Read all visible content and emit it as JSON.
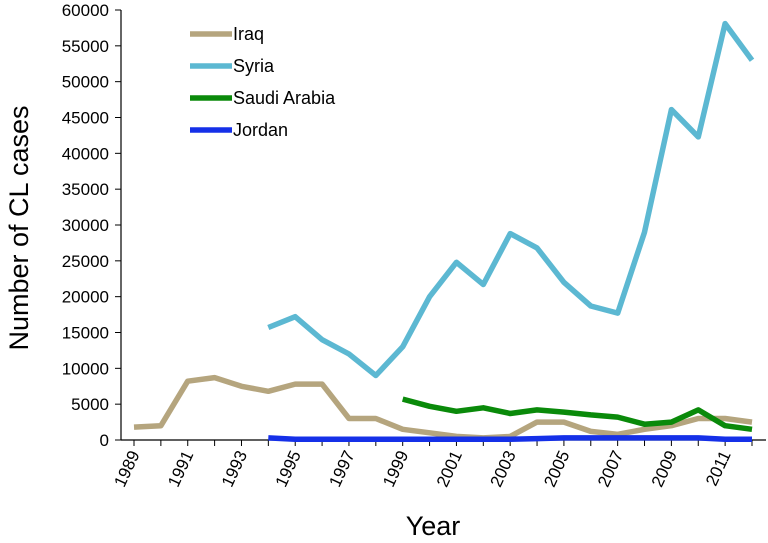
{
  "chart_data": {
    "type": "line",
    "xlabel": "Year",
    "ylabel": "Number of CL cases",
    "xlim": [
      1989,
      2012
    ],
    "ylim": [
      0,
      60000
    ],
    "grid": false,
    "legend_position": "top-left",
    "x_tick_labels": [
      "1989",
      "1991",
      "1993",
      "1995",
      "1997",
      "1999",
      "2001",
      "2003",
      "2005",
      "2007",
      "2009",
      "2011"
    ],
    "y_tick_labels": [
      "0",
      "5000",
      "10000",
      "15000",
      "20000",
      "25000",
      "30000",
      "35000",
      "40000",
      "45000",
      "50000",
      "55000",
      "60000"
    ],
    "series": [
      {
        "name": "Iraq",
        "color": "#b5a57e",
        "points": [
          [
            1989,
            1800
          ],
          [
            1990,
            2000
          ],
          [
            1991,
            8200
          ],
          [
            1992,
            8700
          ],
          [
            1993,
            7500
          ],
          [
            1994,
            6800
          ],
          [
            1995,
            7800
          ],
          [
            1996,
            7800
          ],
          [
            1997,
            3000
          ],
          [
            1998,
            3000
          ],
          [
            1999,
            1500
          ],
          [
            2000,
            1000
          ],
          [
            2001,
            500
          ],
          [
            2002,
            300
          ],
          [
            2003,
            500
          ],
          [
            2004,
            2500
          ],
          [
            2005,
            2500
          ],
          [
            2006,
            1200
          ],
          [
            2007,
            800
          ],
          [
            2008,
            1500
          ],
          [
            2009,
            2000
          ],
          [
            2010,
            3000
          ],
          [
            2011,
            3000
          ],
          [
            2012,
            2500
          ]
        ]
      },
      {
        "name": "Syria",
        "color": "#5cb8d2",
        "points": [
          [
            1994,
            15700
          ],
          [
            1995,
            17200
          ],
          [
            1996,
            14000
          ],
          [
            1997,
            12000
          ],
          [
            1998,
            9000
          ],
          [
            1999,
            13000
          ],
          [
            2000,
            20000
          ],
          [
            2001,
            24800
          ],
          [
            2002,
            21700
          ],
          [
            2003,
            28800
          ],
          [
            2004,
            26800
          ],
          [
            2005,
            22000
          ],
          [
            2006,
            18700
          ],
          [
            2007,
            17700
          ],
          [
            2008,
            29000
          ],
          [
            2009,
            46100
          ],
          [
            2010,
            42300
          ],
          [
            2011,
            58100
          ],
          [
            2012,
            53000
          ]
        ]
      },
      {
        "name": "Saudi Arabia",
        "color": "#0a8a0a",
        "points": [
          [
            1999,
            5700
          ],
          [
            2000,
            4700
          ],
          [
            2001,
            4000
          ],
          [
            2002,
            4500
          ],
          [
            2003,
            3700
          ],
          [
            2004,
            4200
          ],
          [
            2005,
            3900
          ],
          [
            2006,
            3500
          ],
          [
            2007,
            3200
          ],
          [
            2008,
            2200
          ],
          [
            2009,
            2500
          ],
          [
            2010,
            4200
          ],
          [
            2011,
            2000
          ],
          [
            2012,
            1500
          ]
        ]
      },
      {
        "name": "Jordan",
        "color": "#1530e8",
        "points": [
          [
            1994,
            300
          ],
          [
            1995,
            100
          ],
          [
            1996,
            100
          ],
          [
            1997,
            100
          ],
          [
            1998,
            100
          ],
          [
            1999,
            100
          ],
          [
            2000,
            100
          ],
          [
            2001,
            100
          ],
          [
            2002,
            100
          ],
          [
            2003,
            100
          ],
          [
            2004,
            200
          ],
          [
            2005,
            300
          ],
          [
            2006,
            300
          ],
          [
            2007,
            300
          ],
          [
            2008,
            300
          ],
          [
            2009,
            300
          ],
          [
            2010,
            300
          ],
          [
            2011,
            100
          ],
          [
            2012,
            100
          ]
        ]
      }
    ]
  }
}
